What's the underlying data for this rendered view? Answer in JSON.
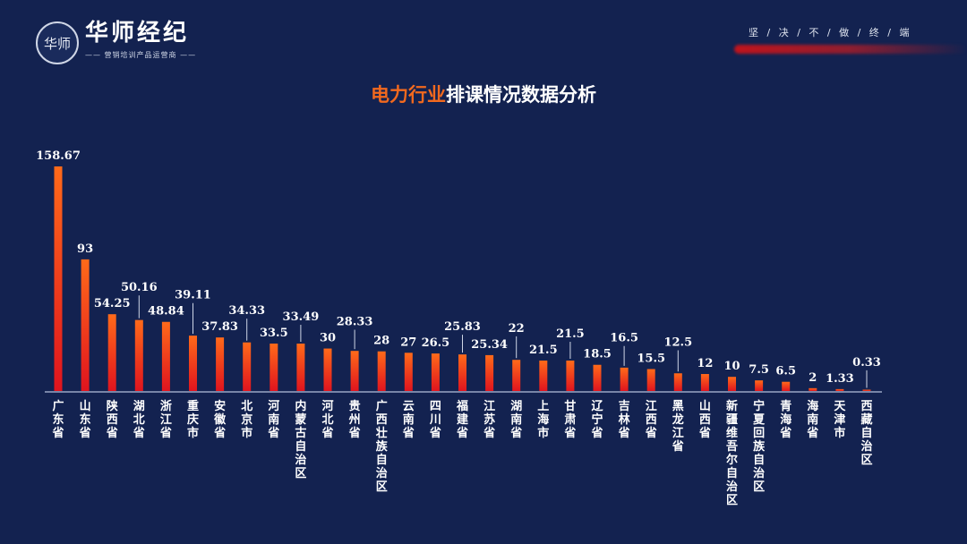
{
  "header": {
    "logo_text": "华师",
    "brand": "华师经纪",
    "tagline": "—— 营销培训产品运营商 ——",
    "motto": "坚 / 决 / 不 / 做 / 终 / 端"
  },
  "title_highlight": "电力行业",
  "title_rest": "排课情况数据分析",
  "colors": {
    "bar_top": "#ff6a1a",
    "bar_bottom": "#e0141e",
    "title_accent": "#f2691e",
    "background": "#132250"
  },
  "chart_data": {
    "type": "bar",
    "title": "电力行业排课情况数据分析",
    "categories": [
      "广东省",
      "山东省",
      "陕西省",
      "湖北省",
      "浙江省",
      "重庆市",
      "安徽省",
      "北京市",
      "河南省",
      "内蒙古自治区",
      "河北省",
      "贵州省",
      "广西壮族自治区",
      "云南省",
      "四川省",
      "福建省",
      "江苏省",
      "湖南省",
      "上海市",
      "甘肃省",
      "辽宁省",
      "吉林省",
      "江西省",
      "黑龙江省",
      "山西省",
      "新疆维吾尔自治区",
      "宁夏回族自治区",
      "青海省",
      "海南省",
      "天津市",
      "西藏自治区"
    ],
    "values": [
      158.67,
      93,
      54.25,
      50.16,
      48.84,
      39.11,
      37.83,
      34.33,
      33.5,
      33.49,
      30,
      28.33,
      28,
      27,
      26.5,
      25.83,
      25.34,
      22,
      21.5,
      21.5,
      18.5,
      16.5,
      15.5,
      12.5,
      12,
      10,
      7.5,
      6.5,
      2,
      1.33,
      0.33
    ],
    "ylim": [
      0,
      160
    ],
    "grid": false,
    "legend": "none"
  }
}
